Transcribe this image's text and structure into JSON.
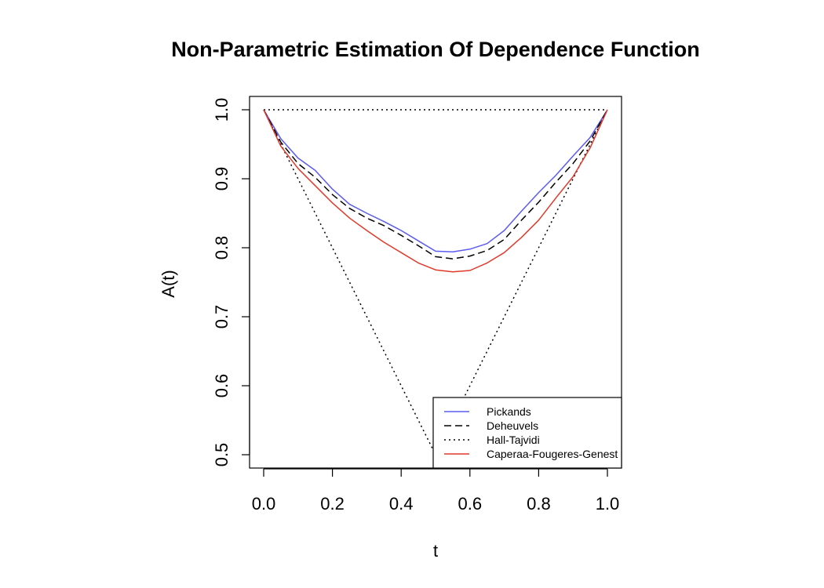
{
  "chart_data": {
    "type": "line",
    "title": "Non-Parametric Estimation Of Dependence Function",
    "xlabel": "t",
    "ylabel": "A(t)",
    "xlim": [
      0,
      1
    ],
    "ylim": [
      0.5,
      1.0
    ],
    "xticks": [
      "0.0",
      "0.2",
      "0.4",
      "0.6",
      "0.8",
      "1.0"
    ],
    "yticks": [
      "0.5",
      "0.6",
      "0.7",
      "0.8",
      "0.9",
      "1.0"
    ],
    "grid": false,
    "legend_position": "bottom-right",
    "x": [
      0,
      0.05,
      0.1,
      0.15,
      0.2,
      0.25,
      0.3,
      0.35,
      0.4,
      0.45,
      0.5,
      0.55,
      0.6,
      0.65,
      0.7,
      0.75,
      0.8,
      0.85,
      0.9,
      0.95,
      1.0
    ],
    "series": [
      {
        "name": "Pickands",
        "color": "#5b5bf0",
        "dash": "solid",
        "values": [
          1.0,
          0.958,
          0.93,
          0.912,
          0.885,
          0.863,
          0.85,
          0.838,
          0.825,
          0.81,
          0.795,
          0.794,
          0.798,
          0.806,
          0.825,
          0.853,
          0.88,
          0.905,
          0.933,
          0.96,
          1.0
        ]
      },
      {
        "name": "Deheuvels",
        "color": "#000000",
        "dash": "dashed",
        "values": [
          1.0,
          0.953,
          0.922,
          0.902,
          0.877,
          0.857,
          0.843,
          0.832,
          0.818,
          0.803,
          0.787,
          0.784,
          0.788,
          0.796,
          0.812,
          0.84,
          0.866,
          0.895,
          0.922,
          0.955,
          1.0
        ]
      },
      {
        "name": "Hall-Tajvidi",
        "color": "#000000",
        "dash": "dotted",
        "values": [
          1.0,
          1.0,
          1.0,
          1.0,
          1.0,
          1.0,
          1.0,
          1.0,
          1.0,
          1.0,
          1.0,
          1.0,
          1.0,
          1.0,
          1.0,
          1.0,
          1.0,
          1.0,
          1.0,
          1.0,
          1.0
        ],
        "bound": {
          "x": [
            0,
            0.5,
            1.0
          ],
          "values": [
            1.0,
            0.5,
            1.0
          ]
        }
      },
      {
        "name": "Caperaa-Fougeres-Genest",
        "color": "#e0392b",
        "dash": "solid",
        "values": [
          1.0,
          0.947,
          0.915,
          0.89,
          0.865,
          0.843,
          0.825,
          0.808,
          0.793,
          0.778,
          0.768,
          0.765,
          0.767,
          0.778,
          0.793,
          0.815,
          0.84,
          0.872,
          0.903,
          0.945,
          1.0
        ]
      }
    ]
  }
}
